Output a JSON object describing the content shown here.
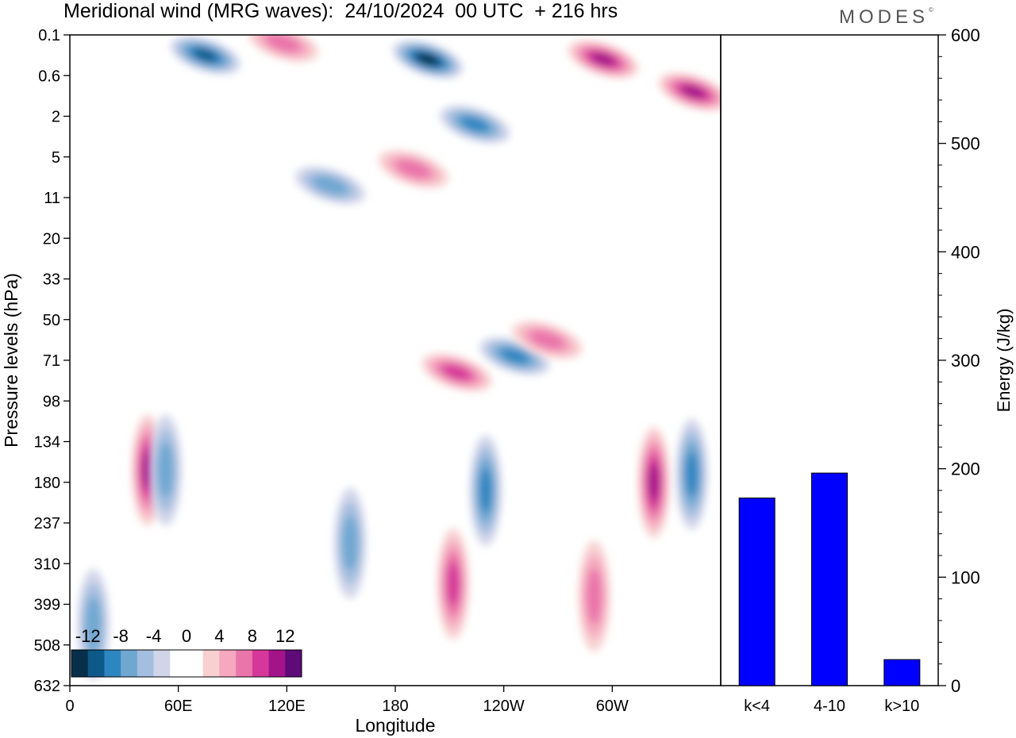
{
  "title": "Meridional wind (MRG waves):  24/10/2024  00 UTC  + 216 hrs",
  "logo": "MODES",
  "chart_data": [
    {
      "type": "heatmap",
      "xlabel": "Longitude",
      "ylabel": "Pressure levels (hPa)",
      "x_ticks": [
        "0",
        "60E",
        "120E",
        "180",
        "120W",
        "60W"
      ],
      "x_tick_values": [
        0,
        60,
        120,
        180,
        240,
        300
      ],
      "xlim": [
        0,
        360
      ],
      "y_ticks": [
        "0.1",
        "0.6",
        "2",
        "5",
        "11",
        "20",
        "33",
        "50",
        "71",
        "98",
        "134",
        "180",
        "237",
        "310",
        "399",
        "508",
        "632"
      ],
      "y_scale": "sigma levels (inverted, top = 0.1 hPa)",
      "colorbar": {
        "labels": [
          "-12",
          "-8",
          "-4",
          "0",
          "4",
          "8",
          "12"
        ],
        "colors": [
          "#082f4a",
          "#0d5a8a",
          "#2e86c1",
          "#6fa7d1",
          "#a4bedf",
          "#d1d5e9",
          "#ffffff",
          "#ffffff",
          "#f8d0d0",
          "#f5a8bf",
          "#ea75aa",
          "#d6379a",
          "#a3148a",
          "#5e0a78"
        ]
      },
      "features": [
        {
          "lon": 75,
          "level_index": 0.5,
          "value": -10
        },
        {
          "lon": 118,
          "level_index": 0.2,
          "value": 6
        },
        {
          "lon": 198,
          "level_index": 0.6,
          "value": -14
        },
        {
          "lon": 295,
          "level_index": 0.6,
          "value": 10
        },
        {
          "lon": 345,
          "level_index": 1.4,
          "value": 10
        },
        {
          "lon": 224,
          "level_index": 2.2,
          "value": -7
        },
        {
          "lon": 190,
          "level_index": 3.3,
          "value": 6
        },
        {
          "lon": 144,
          "level_index": 3.7,
          "value": -5
        },
        {
          "lon": 246,
          "level_index": 7.9,
          "value": -8
        },
        {
          "lon": 264,
          "level_index": 7.5,
          "value": 5
        },
        {
          "lon": 214,
          "level_index": 8.3,
          "value": 8
        },
        {
          "lon": 43,
          "level_index": 10.7,
          "value": 10
        },
        {
          "lon": 53,
          "level_index": 10.7,
          "value": -6
        },
        {
          "lon": 230,
          "level_index": 11.2,
          "value": -8
        },
        {
          "lon": 323,
          "level_index": 11.0,
          "value": 10
        },
        {
          "lon": 344,
          "level_index": 10.8,
          "value": -8
        },
        {
          "lon": 155,
          "level_index": 12.5,
          "value": -6
        },
        {
          "lon": 212,
          "level_index": 13.5,
          "value": 7
        },
        {
          "lon": 290,
          "level_index": 13.8,
          "value": 6
        },
        {
          "lon": 13,
          "level_index": 14.5,
          "value": -6
        }
      ]
    },
    {
      "type": "bar",
      "categories": [
        "k<4",
        "4-10",
        "k>10"
      ],
      "values": [
        173,
        196,
        24
      ],
      "ylabel": "Energy (J/kg)",
      "ylim": [
        0,
        600
      ],
      "y_ticks": [
        0,
        100,
        200,
        300,
        400,
        500,
        600
      ],
      "bar_color": "#0000ff"
    }
  ]
}
